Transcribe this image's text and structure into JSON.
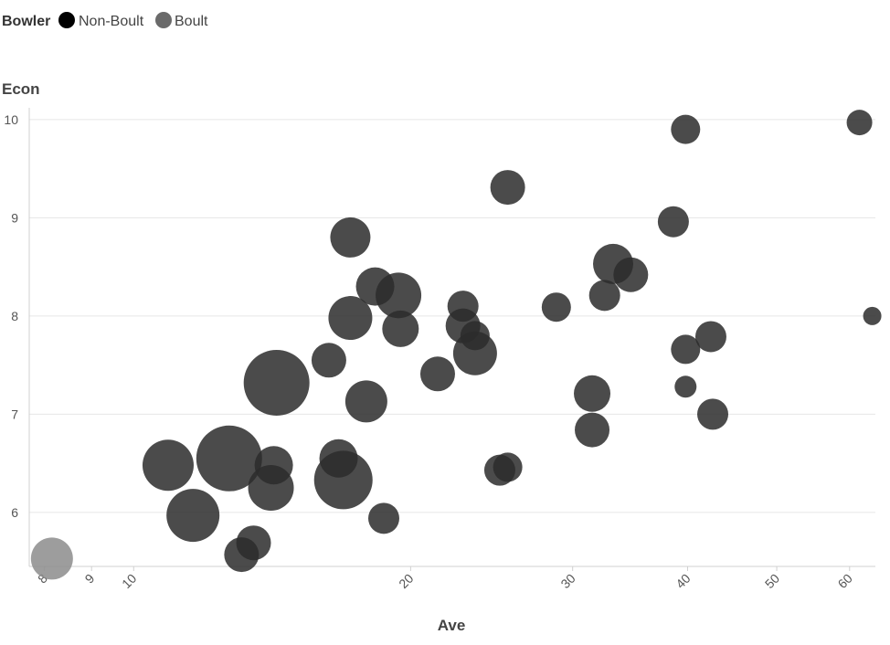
{
  "chart_data": {
    "type": "scatter",
    "x_scale": "log",
    "legend": {
      "title": "Bowler",
      "placement": "top-left",
      "entries": [
        {
          "name": "Non-Boult",
          "color": "#000000"
        },
        {
          "name": "Boult",
          "color": "#6a6a6a"
        }
      ]
    },
    "xlabel": "Ave",
    "ylabel": "Econ",
    "xlim": [
      7.7,
      64
    ],
    "ylim": [
      5.45,
      10.12
    ],
    "x_ticks": [
      8,
      9,
      10,
      20,
      30,
      40,
      50,
      60
    ],
    "y_ticks": [
      6,
      7,
      8,
      9,
      10
    ],
    "grid": "horizontal",
    "point_color": "#2b2b2b",
    "point_opacity": 0.85,
    "boult_color": "#8c8c8c",
    "series": [
      {
        "name": "Non-Boult",
        "points": [
          {
            "x": 14.3,
            "y": 7.32,
            "size": 36
          },
          {
            "x": 12.7,
            "y": 6.55,
            "size": 36
          },
          {
            "x": 16.9,
            "y": 6.33,
            "size": 32
          },
          {
            "x": 11.6,
            "y": 5.97,
            "size": 29
          },
          {
            "x": 10.9,
            "y": 6.48,
            "size": 28
          },
          {
            "x": 14.1,
            "y": 6.25,
            "size": 25
          },
          {
            "x": 19.4,
            "y": 8.21,
            "size": 25
          },
          {
            "x": 17.2,
            "y": 7.98,
            "size": 24
          },
          {
            "x": 16.7,
            "y": 6.55,
            "size": 21
          },
          {
            "x": 16.3,
            "y": 7.55,
            "size": 19
          },
          {
            "x": 17.9,
            "y": 7.13,
            "size": 23
          },
          {
            "x": 23.5,
            "y": 7.62,
            "size": 24
          },
          {
            "x": 14.2,
            "y": 6.48,
            "size": 21
          },
          {
            "x": 17.2,
            "y": 8.8,
            "size": 22
          },
          {
            "x": 18.3,
            "y": 8.3,
            "size": 21
          },
          {
            "x": 19.5,
            "y": 7.87,
            "size": 20
          },
          {
            "x": 21.4,
            "y": 7.41,
            "size": 19
          },
          {
            "x": 22.8,
            "y": 7.9,
            "size": 19
          },
          {
            "x": 22.8,
            "y": 8.1,
            "size": 17
          },
          {
            "x": 23.5,
            "y": 7.8,
            "size": 16
          },
          {
            "x": 25.5,
            "y": 9.31,
            "size": 19
          },
          {
            "x": 25.0,
            "y": 6.43,
            "size": 17
          },
          {
            "x": 25.5,
            "y": 6.46,
            "size": 16
          },
          {
            "x": 28.8,
            "y": 8.09,
            "size": 16
          },
          {
            "x": 31.5,
            "y": 7.21,
            "size": 20
          },
          {
            "x": 31.5,
            "y": 6.84,
            "size": 19
          },
          {
            "x": 32.5,
            "y": 8.21,
            "size": 17
          },
          {
            "x": 33.2,
            "y": 8.53,
            "size": 22
          },
          {
            "x": 34.7,
            "y": 8.42,
            "size": 19
          },
          {
            "x": 38.6,
            "y": 8.96,
            "size": 17
          },
          {
            "x": 39.8,
            "y": 9.9,
            "size": 16
          },
          {
            "x": 39.8,
            "y": 7.66,
            "size": 16
          },
          {
            "x": 39.8,
            "y": 7.28,
            "size": 12
          },
          {
            "x": 42.4,
            "y": 7.79,
            "size": 17
          },
          {
            "x": 42.6,
            "y": 7.0,
            "size": 17
          },
          {
            "x": 61.5,
            "y": 9.97,
            "size": 14
          },
          {
            "x": 63.5,
            "y": 8.0,
            "size": 10
          },
          {
            "x": 18.7,
            "y": 5.94,
            "size": 17
          },
          {
            "x": 13.1,
            "y": 5.57,
            "size": 19
          },
          {
            "x": 13.5,
            "y": 5.69,
            "size": 19
          }
        ]
      },
      {
        "name": "Boult",
        "points": [
          {
            "x": 8.15,
            "y": 5.53,
            "size": 23
          }
        ]
      }
    ]
  }
}
